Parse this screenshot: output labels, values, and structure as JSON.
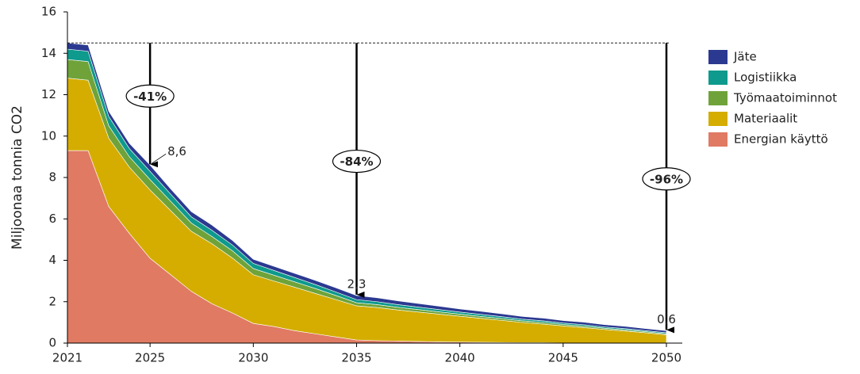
{
  "chart_data": {
    "type": "stacked_area",
    "y_label": "Miljoonaa tonnia CO2",
    "x": [
      2021,
      2022,
      2023,
      2024,
      2025,
      2026,
      2027,
      2028,
      2029,
      2030,
      2031,
      2032,
      2033,
      2034,
      2035,
      2036,
      2037,
      2038,
      2039,
      2040,
      2041,
      2042,
      2043,
      2044,
      2045,
      2046,
      2047,
      2048,
      2049,
      2050
    ],
    "xlim": [
      2021,
      2050
    ],
    "xticks": [
      2021,
      2025,
      2030,
      2035,
      2040,
      2045,
      2050
    ],
    "ylim": [
      0,
      16
    ],
    "yticks": [
      0,
      2,
      4,
      6,
      8,
      10,
      12,
      14,
      16
    ],
    "series": [
      {
        "name": "Energian käyttö",
        "color": "#e07a63",
        "values": [
          9.3,
          9.3,
          6.6,
          5.3,
          4.1,
          3.3,
          2.5,
          1.9,
          1.45,
          0.95,
          0.8,
          0.6,
          0.45,
          0.3,
          0.15,
          0.12,
          0.1,
          0.08,
          0.06,
          0.05,
          0.04,
          0.03,
          0.02,
          0.02,
          0.01,
          0.01,
          0,
          0,
          0,
          0
        ]
      },
      {
        "name": "Materiaalit",
        "color": "#d4ad00",
        "values": [
          3.5,
          3.4,
          3.3,
          3.2,
          3.3,
          3.1,
          2.9,
          2.9,
          2.65,
          2.35,
          2.2,
          2.1,
          1.95,
          1.8,
          1.65,
          1.6,
          1.5,
          1.42,
          1.34,
          1.25,
          1.16,
          1.07,
          0.98,
          0.9,
          0.82,
          0.74,
          0.66,
          0.58,
          0.5,
          0.4
        ]
      },
      {
        "name": "Työmaatoiminnot",
        "color": "#6fa33a",
        "values": [
          0.9,
          0.9,
          0.6,
          0.5,
          0.5,
          0.45,
          0.4,
          0.35,
          0.35,
          0.3,
          0.28,
          0.26,
          0.24,
          0.2,
          0.15,
          0.14,
          0.13,
          0.12,
          0.11,
          0.1,
          0.09,
          0.09,
          0.08,
          0.08,
          0.07,
          0.07,
          0.06,
          0.06,
          0.05,
          0.05
        ]
      },
      {
        "name": "Logistiikka",
        "color": "#0e9a8c",
        "values": [
          0.5,
          0.5,
          0.45,
          0.4,
          0.4,
          0.35,
          0.3,
          0.3,
          0.28,
          0.25,
          0.23,
          0.21,
          0.19,
          0.17,
          0.15,
          0.14,
          0.13,
          0.12,
          0.11,
          0.1,
          0.1,
          0.09,
          0.08,
          0.08,
          0.07,
          0.07,
          0.06,
          0.06,
          0.05,
          0.05
        ]
      },
      {
        "name": "Jäte",
        "color": "#2b3990",
        "values": [
          0.3,
          0.3,
          0.25,
          0.25,
          0.3,
          0.25,
          0.25,
          0.25,
          0.22,
          0.2,
          0.2,
          0.2,
          0.2,
          0.2,
          0.2,
          0.19,
          0.18,
          0.17,
          0.16,
          0.15,
          0.15,
          0.14,
          0.13,
          0.13,
          0.12,
          0.12,
          0.11,
          0.11,
          0.1,
          0.1
        ]
      }
    ],
    "reference_line": 14.5,
    "annotations": [
      {
        "x": 2025,
        "value": 8.6,
        "value_label": "8,6",
        "change": "-41%"
      },
      {
        "x": 2035,
        "value": 2.3,
        "value_label": "2,3",
        "change": "-84%"
      },
      {
        "x": 2050,
        "value": 0.6,
        "value_label": "0,6",
        "change": "-96%"
      }
    ]
  }
}
